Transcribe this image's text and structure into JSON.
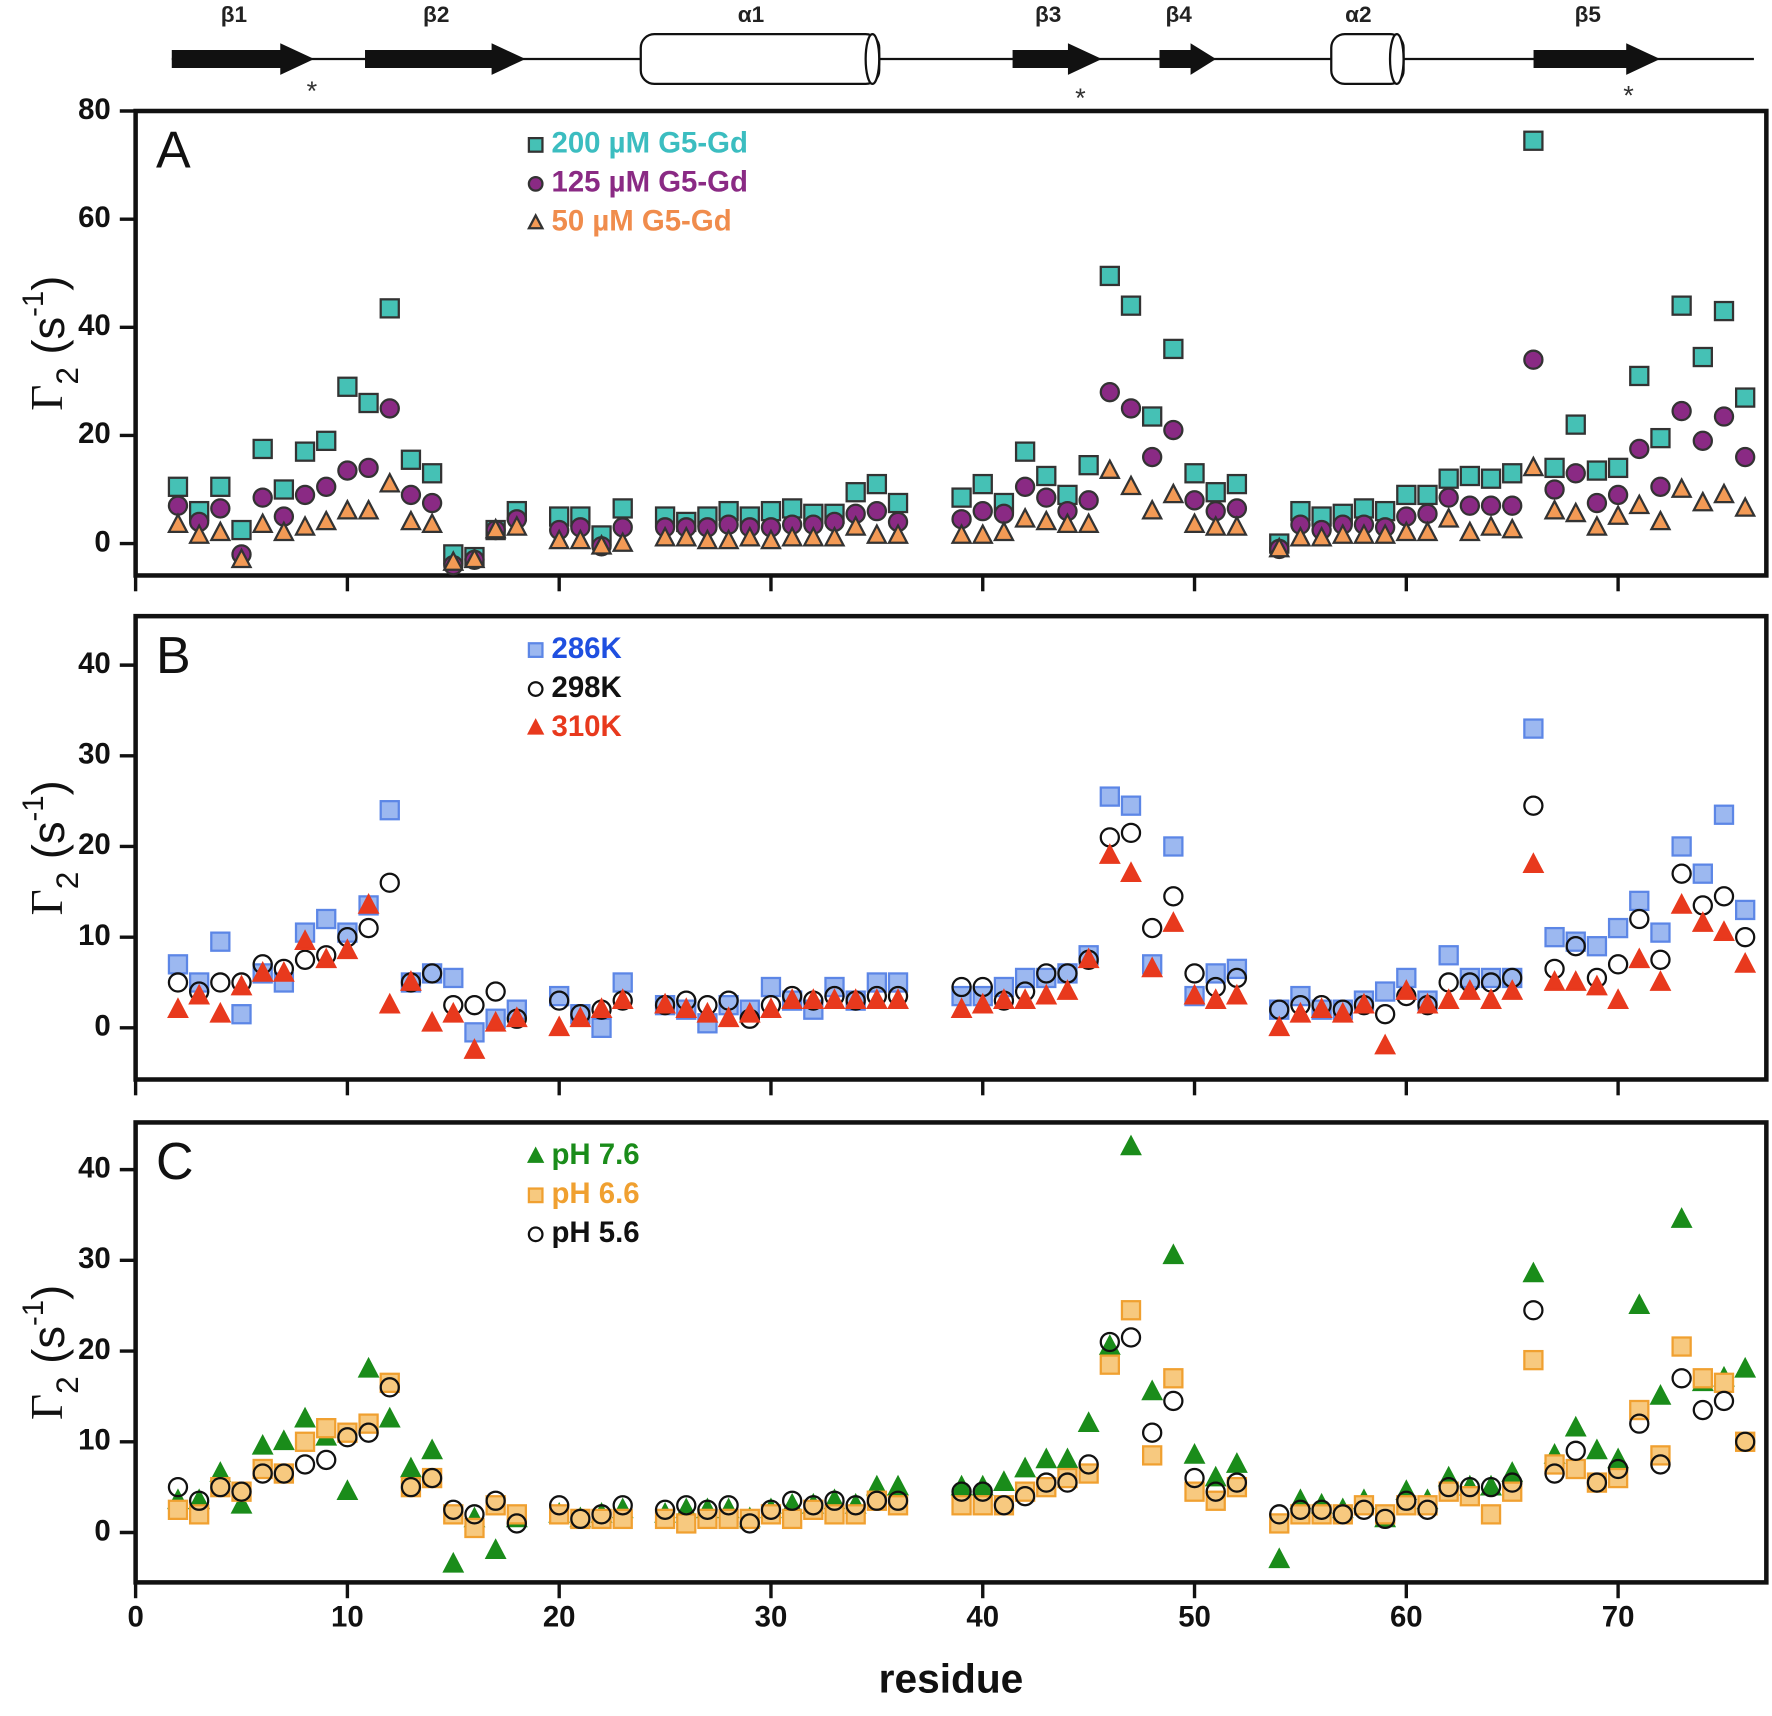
{
  "secondary_structure": {
    "elements": [
      {
        "label": "β1",
        "shape": "strand"
      },
      {
        "label": "β2",
        "shape": "strand"
      },
      {
        "label": "α1",
        "shape": "helix"
      },
      {
        "label": "β3",
        "shape": "strand"
      },
      {
        "label": "β4",
        "shape": "strand"
      },
      {
        "label": "α2",
        "shape": "helix"
      },
      {
        "label": "β5",
        "shape": "strand"
      }
    ],
    "asterisks": [
      "*",
      "*",
      "*"
    ]
  },
  "chart_data": [
    {
      "type": "scatter",
      "panel": "A",
      "y_label": [
        "Γ",
        "2",
        " (s",
        "-1",
        ")"
      ],
      "xlim": [
        0,
        77
      ],
      "xticks": [
        0,
        10,
        20,
        30,
        40,
        50,
        60,
        70
      ],
      "xtick_labels": false,
      "ylim": [
        -5.9,
        80
      ],
      "yticks": [
        0,
        20,
        40,
        60,
        80
      ],
      "x": [
        2,
        3,
        4,
        5,
        6,
        7,
        8,
        9,
        10,
        11,
        12,
        13,
        14,
        15,
        16,
        17,
        18,
        20,
        21,
        22,
        23,
        25,
        26,
        27,
        28,
        29,
        30,
        31,
        32,
        33,
        34,
        35,
        36,
        39,
        40,
        41,
        42,
        43,
        44,
        45,
        46,
        47,
        48,
        49,
        50,
        51,
        52,
        54,
        55,
        56,
        57,
        58,
        59,
        60,
        61,
        62,
        63,
        64,
        65,
        66,
        67,
        68,
        69,
        70,
        71,
        72,
        73,
        74,
        75,
        76
      ],
      "series": [
        {
          "name": "200 µM G5-Gd",
          "marker": "square",
          "color": "#3bbdc0",
          "fill": "#45c1b5",
          "edge": "#333333",
          "values": [
            10.5,
            6,
            10.5,
            2.5,
            17.5,
            10,
            17,
            19,
            29,
            26,
            43.5,
            15.5,
            13,
            -2,
            -2.5,
            2.5,
            6,
            5,
            5,
            1.5,
            6.5,
            5,
            4,
            5,
            6,
            5,
            6,
            6.5,
            5.5,
            5.5,
            9.5,
            11,
            7.5,
            8.5,
            11,
            7.5,
            17,
            12.5,
            9,
            14.5,
            49.5,
            44,
            23.5,
            36,
            13,
            9.5,
            11,
            0,
            6,
            5,
            5.5,
            6.5,
            6,
            9,
            9,
            12,
            12.5,
            12,
            13,
            74.5,
            14,
            22,
            13.5,
            14,
            31,
            19.5,
            44,
            34.5,
            43,
            27
          ]
        },
        {
          "name": "125 µM G5-Gd",
          "marker": "circle",
          "color": "#8a2a84",
          "fill": "#8a2a84",
          "edge": "#333333",
          "values": [
            7,
            4,
            6.5,
            -2,
            8.5,
            5,
            9,
            10.5,
            13.5,
            14,
            25,
            9,
            7.5,
            -4,
            -3,
            2.5,
            4.5,
            2.5,
            3,
            -0.5,
            3,
            3,
            3,
            3,
            3.5,
            3,
            3,
            3.5,
            3.5,
            4,
            5.5,
            6,
            4,
            4.5,
            6,
            5.5,
            10.5,
            8.5,
            6,
            8,
            28,
            25,
            16,
            21,
            8,
            6,
            6.5,
            -1,
            3.5,
            2.5,
            3.5,
            3.5,
            3,
            5,
            5.5,
            8.5,
            7,
            7,
            7,
            34,
            10,
            13,
            7.5,
            9,
            17.5,
            10.5,
            24.5,
            19,
            23.5,
            16
          ]
        },
        {
          "name": "50 µM G5-Gd",
          "marker": "triangle",
          "color": "#f08c4c",
          "fill": "#f39a55",
          "edge": "#333333",
          "values": [
            3.5,
            1.5,
            2,
            -3,
            3.5,
            2,
            3,
            4,
            6,
            6,
            11,
            4,
            3.5,
            -3.5,
            -3,
            2.5,
            3,
            0.5,
            0.5,
            -0.5,
            0,
            1,
            1,
            0.5,
            0.5,
            1,
            0.5,
            1,
            1,
            1,
            3,
            1.5,
            1.5,
            1.5,
            1.5,
            2,
            4.5,
            4,
            3.5,
            3.5,
            13.5,
            10.5,
            6,
            9,
            3.5,
            3,
            3,
            -1,
            1,
            1,
            1.5,
            1.5,
            1.5,
            2,
            2,
            4.5,
            2,
            3,
            2.5,
            14,
            6,
            5.5,
            3,
            5,
            7,
            4,
            10,
            7.5,
            9,
            6.5
          ]
        }
      ]
    },
    {
      "type": "scatter",
      "panel": "B",
      "y_label": [
        "Γ",
        "2",
        " (s",
        "-1",
        ")"
      ],
      "xlim": [
        0,
        77
      ],
      "xticks": [
        0,
        10,
        20,
        30,
        40,
        50,
        60,
        70
      ],
      "xtick_labels": false,
      "ylim": [
        -5.7,
        45.4
      ],
      "yticks": [
        0,
        10,
        20,
        30,
        40
      ],
      "x": [
        2,
        3,
        4,
        5,
        6,
        7,
        8,
        9,
        10,
        11,
        12,
        13,
        14,
        15,
        16,
        17,
        18,
        20,
        21,
        22,
        23,
        25,
        26,
        27,
        28,
        29,
        30,
        31,
        32,
        33,
        34,
        35,
        36,
        39,
        40,
        41,
        42,
        43,
        44,
        45,
        46,
        47,
        48,
        49,
        50,
        51,
        52,
        54,
        55,
        56,
        57,
        58,
        59,
        60,
        61,
        62,
        63,
        64,
        65,
        66,
        67,
        68,
        69,
        70,
        71,
        72,
        73,
        74,
        75,
        76
      ],
      "series": [
        {
          "name": "286K",
          "marker": "square",
          "color": "#1f4fe0",
          "fill": "#9cb8f0",
          "edge": "#5c86e6",
          "values": [
            7,
            5,
            9.5,
            1.5,
            6,
            5,
            10.5,
            12,
            10.5,
            13.5,
            24,
            5,
            6,
            5.5,
            -0.5,
            1,
            2,
            3.5,
            1.5,
            0,
            5,
            2.5,
            2,
            0.5,
            2.5,
            2,
            4.5,
            3,
            2,
            4.5,
            3,
            5,
            5,
            3.5,
            3.5,
            4.5,
            5.5,
            5.5,
            6,
            8,
            25.5,
            24.5,
            7,
            20,
            3.5,
            6,
            6.5,
            2,
            3.5,
            2,
            2,
            3,
            4,
            5.5,
            3,
            8,
            5.5,
            5.5,
            5.5,
            33,
            10,
            9.5,
            9,
            11,
            14,
            10.5,
            20,
            17,
            23.5,
            13
          ]
        },
        {
          "name": "298K",
          "marker": "circle",
          "color": "#111111",
          "fill": "none",
          "edge": "#111111",
          "values": [
            5,
            4,
            5,
            5,
            7,
            6.5,
            7.5,
            8,
            10,
            11,
            16,
            5,
            6,
            2.5,
            2.5,
            4,
            1,
            3,
            1.5,
            2,
            3,
            2.5,
            3,
            2.5,
            3,
            1,
            2.5,
            3.5,
            3,
            3.5,
            3,
            3.5,
            3.5,
            4.5,
            4.5,
            3,
            4,
            6,
            6,
            7.5,
            21,
            21.5,
            11,
            14.5,
            6,
            4.5,
            5.5,
            2,
            2.5,
            2.5,
            2,
            2.5,
            1.5,
            3.5,
            2.5,
            5,
            5,
            5,
            5.5,
            24.5,
            6.5,
            9,
            5.5,
            7,
            12,
            7.5,
            17,
            13.5,
            14.5,
            10
          ]
        },
        {
          "name": "310K",
          "marker": "triangle",
          "color": "#e8391d",
          "fill": "#e8391d",
          "edge": "#e8391d",
          "values": [
            2,
            3.5,
            1.5,
            4.5,
            6,
            6,
            9.5,
            7.5,
            8.5,
            13.5,
            2.5,
            5,
            0.5,
            1.5,
            -2.5,
            0.5,
            1,
            0,
            1,
            2,
            3,
            2.5,
            2,
            1.5,
            1,
            1.5,
            2,
            3,
            3,
            3,
            3,
            3,
            3,
            2,
            2.5,
            3,
            3,
            3.5,
            4,
            7.5,
            19,
            17,
            6.5,
            11.5,
            3.5,
            3,
            3.5,
            0,
            1.5,
            2,
            1.5,
            2.5,
            -2,
            4,
            2.5,
            3,
            4,
            3,
            4,
            18,
            5,
            5,
            4.5,
            3,
            7.5,
            5,
            13.5,
            11.5,
            10.5,
            7
          ]
        }
      ]
    },
    {
      "type": "scatter",
      "panel": "C",
      "y_label": [
        "Γ",
        "2",
        " (s",
        "-1",
        ")"
      ],
      "x_label": "residue",
      "xlim": [
        0,
        77
      ],
      "xticks": [
        0,
        10,
        20,
        30,
        40,
        50,
        60,
        70
      ],
      "xtick_labels": true,
      "ylim": [
        -5.5,
        45.2
      ],
      "yticks": [
        0,
        10,
        20,
        30,
        40
      ],
      "x": [
        2,
        3,
        4,
        5,
        6,
        7,
        8,
        9,
        10,
        11,
        12,
        13,
        14,
        15,
        16,
        17,
        18,
        20,
        21,
        22,
        23,
        25,
        26,
        27,
        28,
        29,
        30,
        31,
        32,
        33,
        34,
        35,
        36,
        39,
        40,
        41,
        42,
        43,
        44,
        45,
        46,
        47,
        48,
        49,
        50,
        51,
        52,
        54,
        55,
        56,
        57,
        58,
        59,
        60,
        61,
        62,
        63,
        64,
        65,
        66,
        67,
        68,
        69,
        70,
        71,
        72,
        73,
        74,
        75,
        76
      ],
      "series": [
        {
          "name": "pH 7.6",
          "marker": "triangle",
          "color": "#1a8c1a",
          "fill": "#1a8c1a",
          "edge": "#1a8c1a",
          "values": [
            3.5,
            3.5,
            6.5,
            3,
            9.5,
            10,
            12.5,
            10.5,
            4.5,
            18,
            12.5,
            7,
            9,
            -3.5,
            1.5,
            -2,
            1.5,
            2,
            1.5,
            2,
            2.5,
            2,
            2.5,
            2.5,
            2.5,
            1.5,
            2.5,
            3,
            3,
            3.5,
            3,
            5,
            5,
            5,
            5,
            5.5,
            7,
            8,
            8,
            12,
            20.5,
            42.5,
            15.5,
            30.5,
            8.5,
            6,
            7.5,
            -3,
            3.5,
            3,
            2.5,
            3.5,
            1.5,
            4.5,
            3.5,
            6,
            5,
            5,
            6.5,
            28.5,
            8.5,
            11.5,
            9,
            8,
            25,
            15,
            34.5,
            16.5,
            17,
            18
          ]
        },
        {
          "name": "pH 6.6",
          "marker": "square",
          "color": "#f0a030",
          "fill": "#f7c97f",
          "edge": "#f0a030",
          "values": [
            2.5,
            2,
            5,
            4.5,
            7,
            6.5,
            10,
            11.5,
            11,
            12,
            16.5,
            5,
            6,
            2,
            0.5,
            3,
            2,
            2,
            1.5,
            1.5,
            1.5,
            1.5,
            1,
            1.5,
            1.5,
            1.5,
            2,
            1.5,
            2.5,
            2,
            2,
            3.5,
            3,
            3,
            3,
            3,
            4.5,
            5,
            6,
            6.5,
            18.5,
            24.5,
            8.5,
            17,
            4.5,
            3.5,
            5,
            1,
            2,
            2,
            2,
            3,
            2,
            3,
            3,
            4.5,
            4,
            2,
            4.5,
            19,
            7.5,
            7,
            5.5,
            6,
            13.5,
            8.5,
            20.5,
            17,
            16.5,
            10
          ]
        },
        {
          "name": "pH 5.6",
          "marker": "circle",
          "color": "#111111",
          "fill": "none",
          "edge": "#111111",
          "values": [
            5,
            3.5,
            5,
            4.5,
            6.5,
            6.5,
            7.5,
            8,
            10.5,
            11,
            16,
            5,
            6,
            2.5,
            2,
            3.5,
            1,
            3,
            1.5,
            2,
            3,
            2.5,
            3,
            2.5,
            3,
            1,
            2.5,
            3.5,
            3,
            3.5,
            3,
            3.5,
            3.5,
            4.5,
            4.5,
            3,
            4,
            5.5,
            5.5,
            7.5,
            21,
            21.5,
            11,
            14.5,
            6,
            4.5,
            5.5,
            2,
            2.5,
            2.5,
            2,
            2.5,
            1.5,
            3.5,
            2.5,
            5,
            5,
            5,
            5.5,
            24.5,
            6.5,
            9,
            5.5,
            7,
            12,
            7.5,
            17,
            13.5,
            14.5,
            10
          ]
        }
      ]
    }
  ]
}
